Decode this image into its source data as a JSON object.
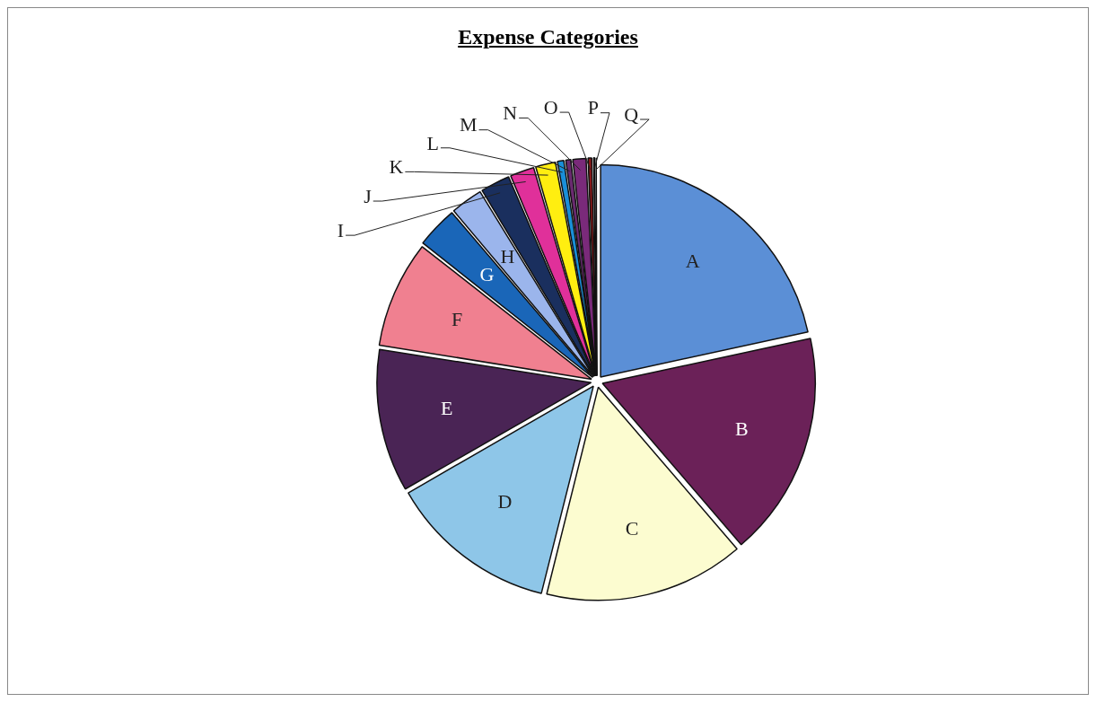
{
  "chart_data": {
    "type": "pie",
    "title": "Expense Categories",
    "categories": [
      "A",
      "B",
      "C",
      "D",
      "E",
      "F",
      "G",
      "H",
      "I",
      "J",
      "K",
      "L",
      "M",
      "N",
      "O",
      "P",
      "Q"
    ],
    "values": [
      21.6,
      17.1,
      15.2,
      12.8,
      10.8,
      8.1,
      3.2,
      2.5,
      2.3,
      1.9,
      1.6,
      0.6,
      0.5,
      1.1,
      0.4,
      0.2,
      0.1
    ],
    "colors": [
      "#5b8fd6",
      "#6b2158",
      "#fcfcd0",
      "#8ec6e8",
      "#4a2455",
      "#f08090",
      "#1a66b8",
      "#9bb5ec",
      "#1a2f5e",
      "#e0309a",
      "#ffee10",
      "#1a8fd8",
      "#6a2a70",
      "#7a2a7a",
      "#8b1a1a",
      "#1a3a6a",
      "#1a9090"
    ],
    "legend": false
  }
}
